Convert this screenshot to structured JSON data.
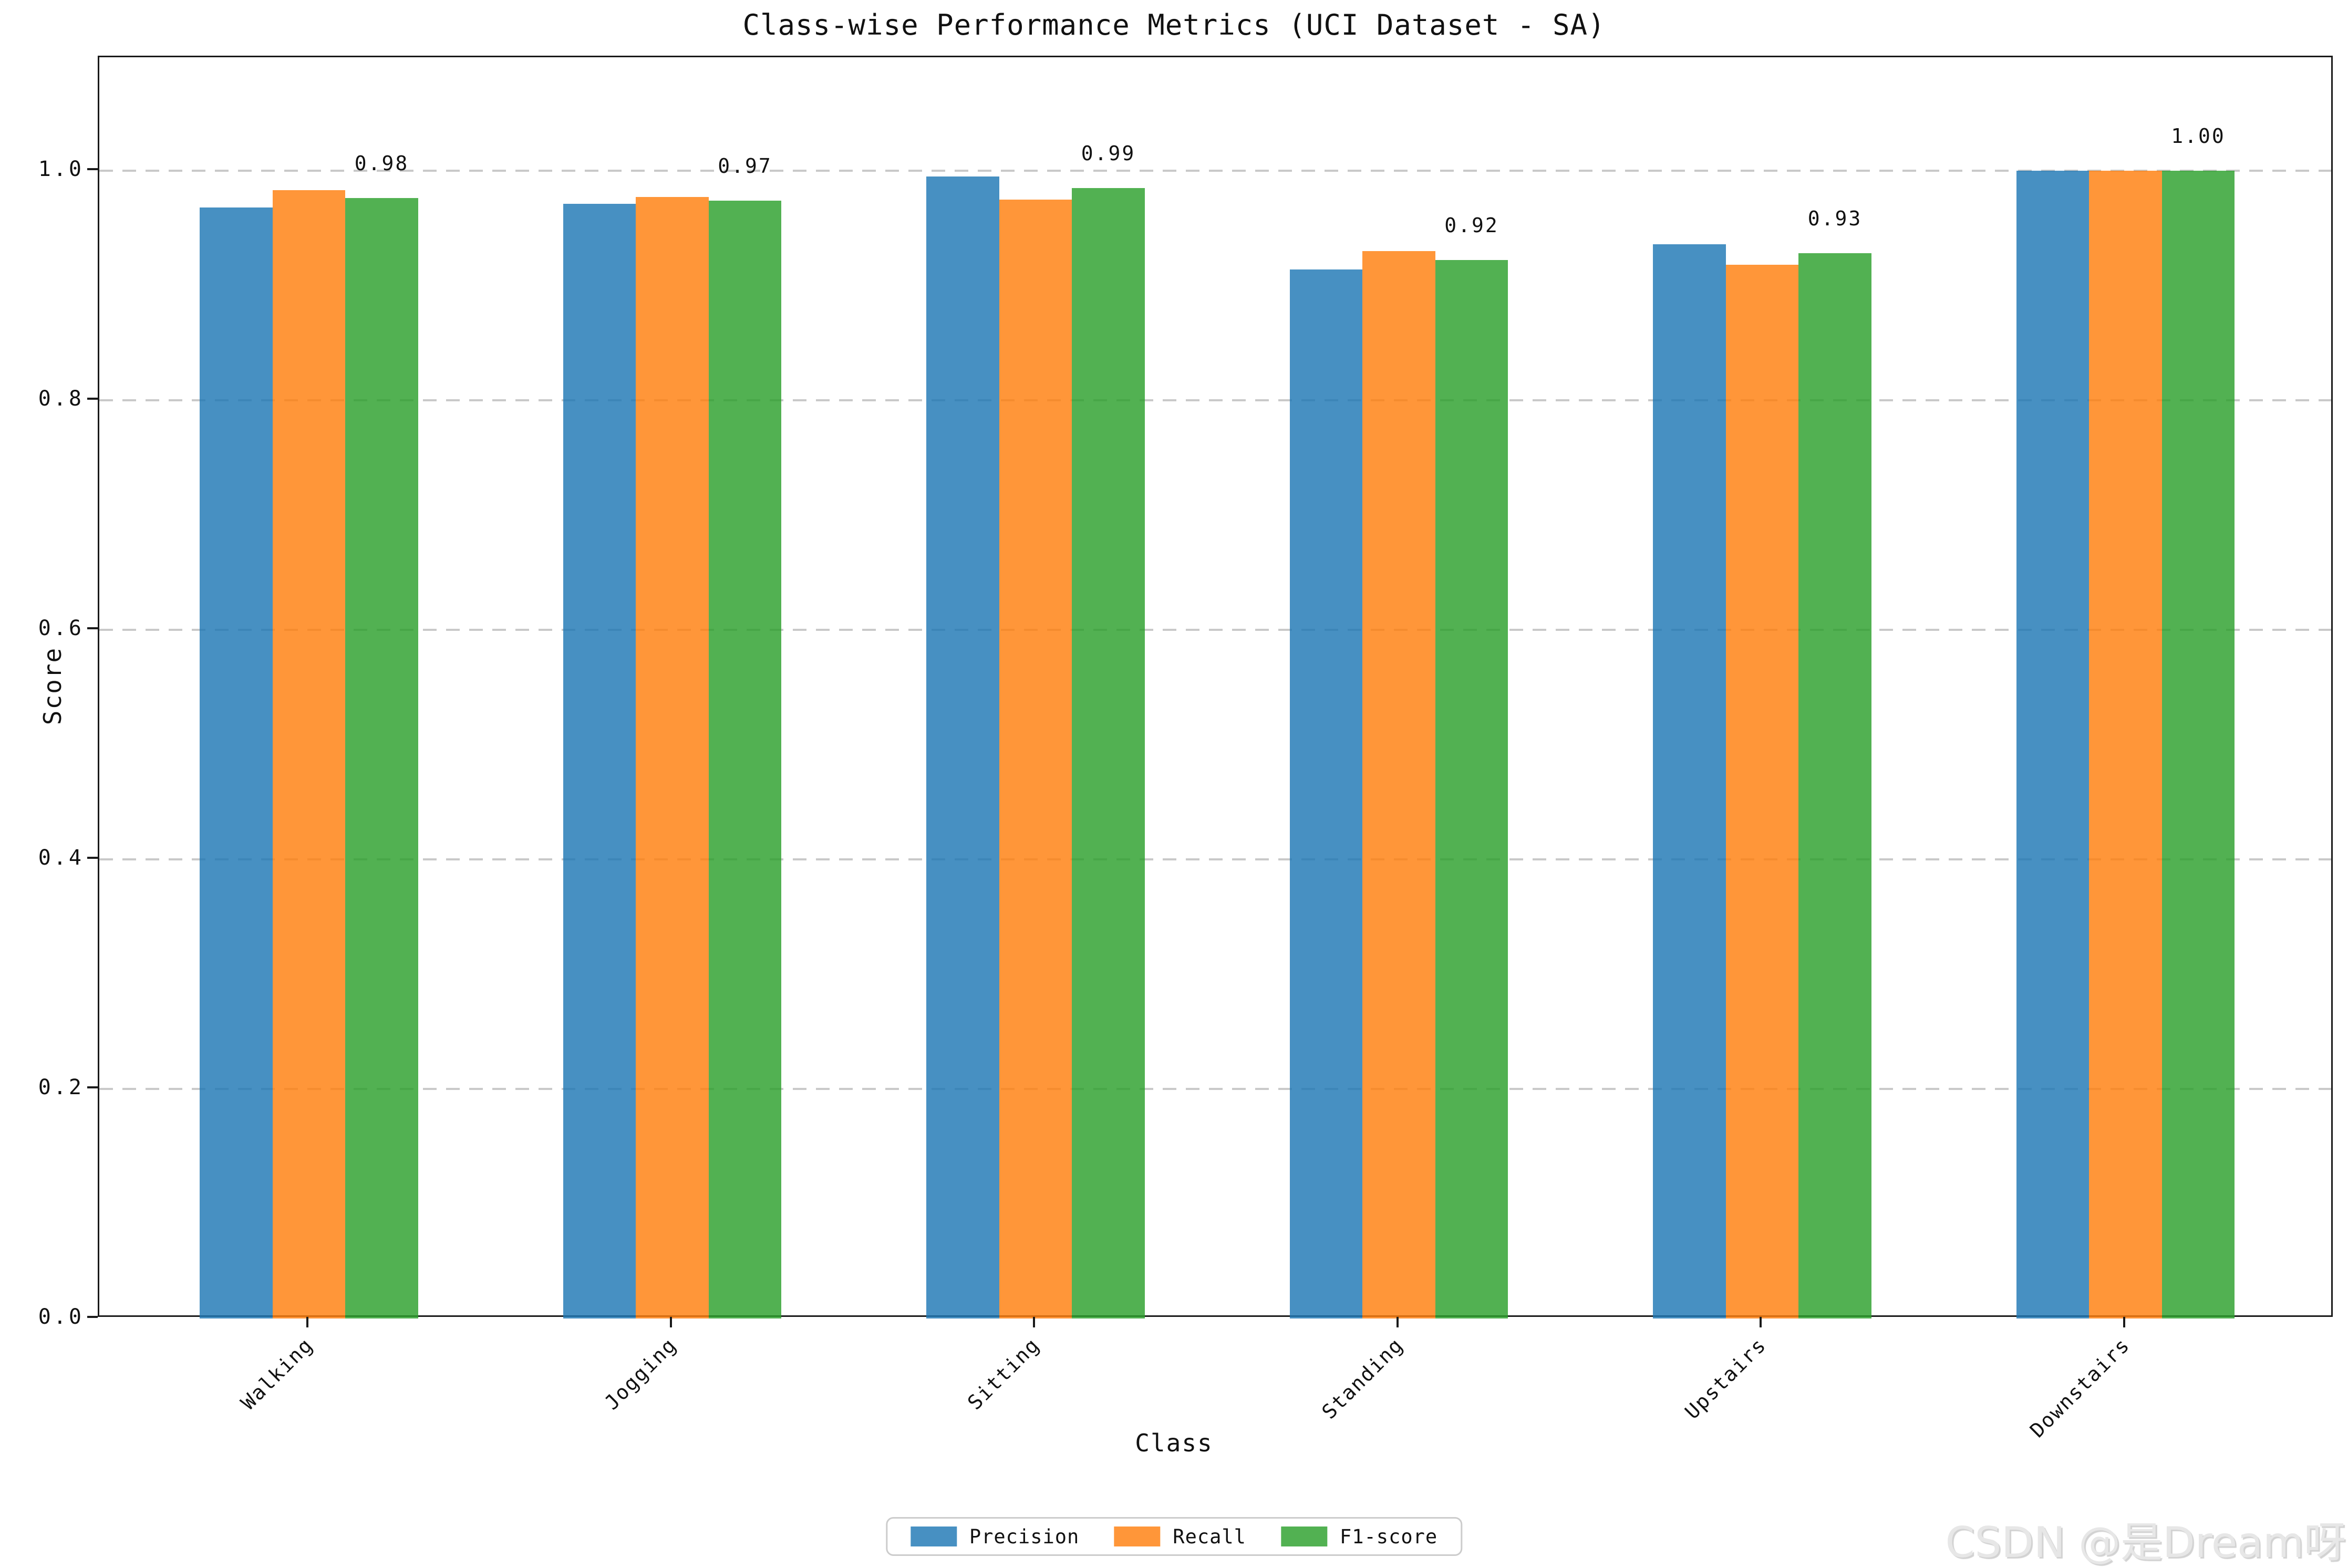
{
  "title": "Class-wise Performance Metrics (UCI Dataset - SA)",
  "axes": {
    "x_label": "Class",
    "y_label": "Score"
  },
  "watermark": "CSDN @是Dream呀",
  "legend": {
    "position": "bottom center",
    "items": [
      {
        "label": "Precision",
        "color": "#1f77b4"
      },
      {
        "label": "Recall",
        "color": "#ff7f0e"
      },
      {
        "label": "F1-score",
        "color": "#2ca02c"
      }
    ]
  },
  "y_axis": {
    "ticks": [
      "0.0",
      "0.2",
      "0.4",
      "0.6",
      "0.8",
      "1.0"
    ],
    "tick_values": [
      0.0,
      0.2,
      0.4,
      0.6,
      0.8,
      1.0
    ]
  },
  "chart_data": {
    "type": "bar",
    "title": "Class-wise Performance Metrics (UCI Dataset - SA)",
    "xlabel": "Class",
    "ylabel": "Score",
    "ylim": [
      0,
      1.1
    ],
    "grid": "horizontal dashed",
    "legend_position": "bottom center outside",
    "bar_alpha": 0.8,
    "categories": [
      "Walking",
      "Jogging",
      "Sitting",
      "Standing",
      "Upstairs",
      "Downstairs"
    ],
    "series": [
      {
        "name": "Precision",
        "color": "#1f77b4",
        "values": [
          0.968,
          0.971,
          0.995,
          0.914,
          0.936,
          1.0
        ]
      },
      {
        "name": "Recall",
        "color": "#ff7f0e",
        "values": [
          0.983,
          0.977,
          0.975,
          0.93,
          0.918,
          1.0
        ]
      },
      {
        "name": "F1-score",
        "color": "#2ca02c",
        "values": [
          0.976,
          0.974,
          0.985,
          0.922,
          0.928,
          1.0
        ]
      }
    ],
    "annotations": {
      "placed_above": "F1-score",
      "labels": [
        "0.98",
        "0.97",
        "0.99",
        "0.92",
        "0.93",
        "1.00"
      ]
    }
  }
}
